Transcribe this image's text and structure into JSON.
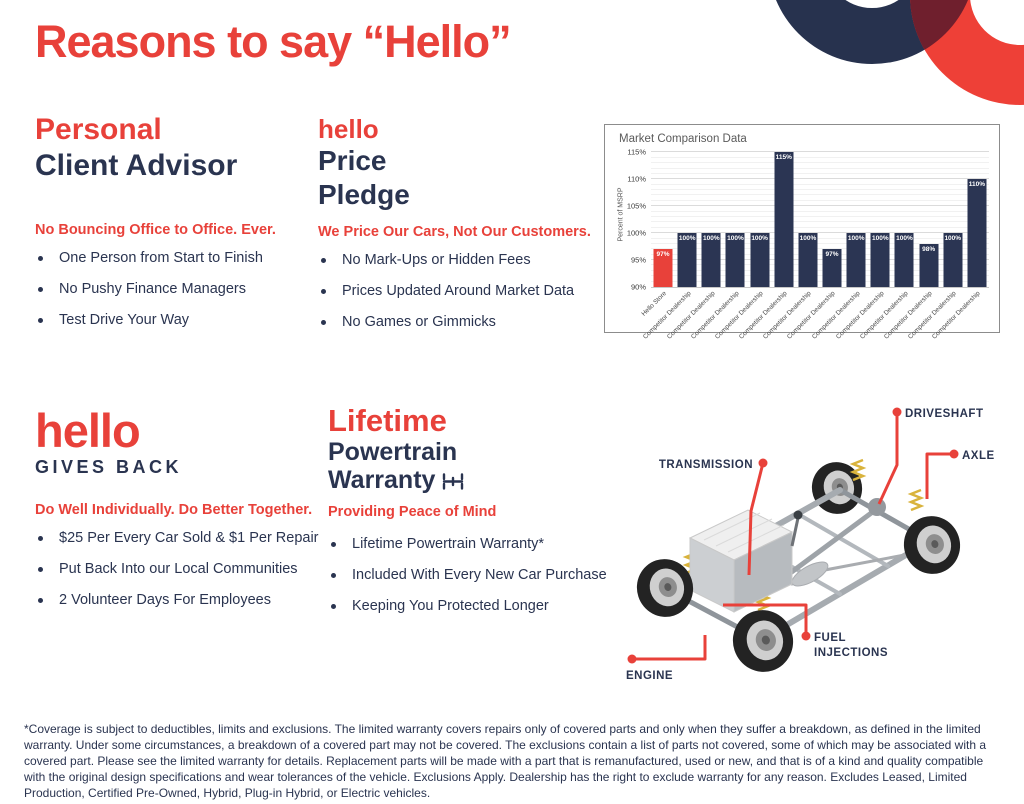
{
  "page": {
    "title": "Reasons to say “Hello”"
  },
  "colors": {
    "accent_red": "#E8413A",
    "navy": "#2A3450",
    "bar_navy": "#2B3553",
    "ring_navy": "#27324E",
    "overlap_maroon": "#6F1F2D"
  },
  "sections": {
    "personal": {
      "accent": "Personal",
      "rest": "Client Advisor",
      "tagline": "No Bouncing Office to Office. Ever.",
      "bullets": [
        "One Person from Start to Finish",
        "No Pushy Finance Managers",
        "Test Drive Your Way"
      ]
    },
    "price": {
      "accent": "hello",
      "line1": "Price",
      "line2": "Pledge",
      "tagline": "We Price Our Cars, Not Our Customers.",
      "bullets": [
        "No Mark-Ups or Hidden Fees",
        "Prices Updated Around Market Data",
        "No Games or Gimmicks"
      ]
    },
    "gives_back": {
      "accent": "hello",
      "rest": "GIVES BACK",
      "tagline": "Do Well Individually. Do Better Together.",
      "bullets": [
        "$25 Per Every Car Sold & $1 Per Repair",
        "Put Back Into our Local Communities",
        "2 Volunteer Days For Employees"
      ]
    },
    "warranty": {
      "accent": "Lifetime",
      "line1": "Powertrain",
      "line2": "Warranty",
      "tagline": "Providing Peace of Mind",
      "bullets": [
        "Lifetime Powertrain Warranty*",
        "Included With Every New Car Purchase",
        "Keeping You Protected Longer"
      ]
    }
  },
  "chart_data": {
    "type": "bar",
    "title": "Market Comparison Data",
    "ylabel": "Percent of MSRP",
    "ylim": [
      90,
      116
    ],
    "yticks": [
      90,
      95,
      100,
      105,
      110,
      115
    ],
    "grid": true,
    "legend": false,
    "categories": [
      "Hello Store",
      "Competitor Dealership",
      "Competitor Dealership",
      "Competitor Dealership",
      "Competitor Dealership",
      "Competitor Dealership",
      "Competitor Dealership",
      "Competitor Dealership",
      "Competitor Dealership",
      "Competitor Dealership",
      "Competitor Dealership",
      "Competitor Dealership",
      "Competitor Dealership",
      "Competitor Dealership"
    ],
    "values": [
      97,
      100,
      100,
      100,
      100,
      115,
      100,
      97,
      100,
      100,
      100,
      98,
      100,
      110
    ],
    "bar_labels": [
      "97%",
      "100%",
      "100%",
      "100%",
      "100%",
      "115%",
      "100%",
      "97%",
      "100%",
      "100%",
      "100%",
      "98%",
      "100%",
      "110%"
    ],
    "highlight_index": 0,
    "highlight_color": "#E8413A",
    "bar_color": "#2B3553"
  },
  "diagram": {
    "labels": {
      "driveshaft": "DRIVESHAFT",
      "axle": "AXLE",
      "transmission": "TRANSMISSION",
      "fuel_line1": "FUEL",
      "fuel_line2": "INJECTIONS",
      "engine": "ENGINE"
    }
  },
  "disclaimer": "*Coverage is subject to deductibles, limits and exclusions. The limited warranty covers repairs only of covered parts and only when they suffer a breakdown, as defined in the limited warranty. Under some circumstances, a breakdown of a covered part may not be covered. The exclusions contain a list of parts not covered, some of which may be associated with a covered part. Please see the limited warranty for details. Replacement parts will be made with a part that is remanufactured, used or new, and that is of a kind and quality compatible with the original design specifications and wear tolerances of the vehicle. Exclusions Apply. Dealership has the right to exclude warranty for any reason. Excludes Leased, Limited Production, Certified Pre-Owned, Hybrid, Plug-in Hybrid, or Electric vehicles."
}
